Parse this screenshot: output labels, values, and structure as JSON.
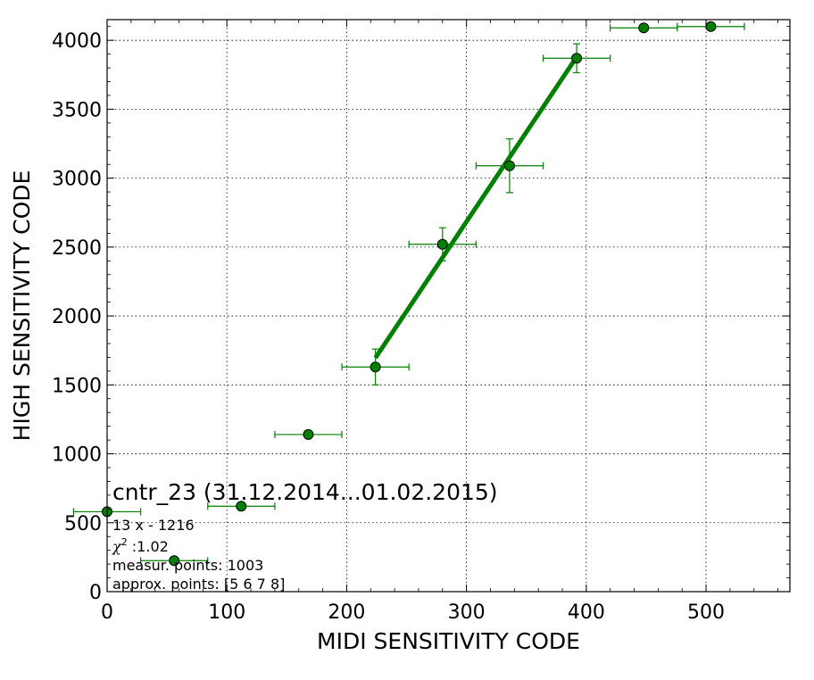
{
  "chart_data": {
    "type": "scatter",
    "title": "",
    "xlabel": "MIDI SENSITIVITY CODE",
    "ylabel": "HIGH SENSITIVITY CODE",
    "xlim": [
      0,
      570
    ],
    "ylim": [
      0,
      4150
    ],
    "x_ticks": [
      0,
      100,
      200,
      300,
      400,
      500
    ],
    "y_ticks": [
      0,
      500,
      1000,
      1500,
      2000,
      2500,
      3000,
      3500,
      4000
    ],
    "grid": true,
    "points": [
      {
        "x": 0,
        "y": 580,
        "xerr": 28,
        "yerr": 0
      },
      {
        "x": 56,
        "y": 225,
        "xerr": 28,
        "yerr": 0
      },
      {
        "x": 112,
        "y": 620,
        "xerr": 28,
        "yerr": 0
      },
      {
        "x": 168,
        "y": 1140,
        "xerr": 28,
        "yerr": 20
      },
      {
        "x": 224,
        "y": 1630,
        "xerr": 28,
        "yerr": 130
      },
      {
        "x": 280,
        "y": 2520,
        "xerr": 28,
        "yerr": 120
      },
      {
        "x": 336,
        "y": 3090,
        "xerr": 28,
        "yerr": 195
      },
      {
        "x": 392,
        "y": 3870,
        "xerr": 28,
        "yerr": 105
      },
      {
        "x": 448,
        "y": 4090,
        "xerr": 28,
        "yerr": 0
      },
      {
        "x": 504,
        "y": 4100,
        "xerr": 28,
        "yerr": 0
      }
    ],
    "fit_line": {
      "x": [
        224,
        392
      ],
      "y": [
        1696,
        3880
      ]
    },
    "colors": {
      "marker": "#008000",
      "edge": "#000000",
      "fit": "#008000",
      "errorbar": "#008000"
    },
    "annotations": {
      "header": "cntr_23 (31.12.2014...01.02.2015)",
      "formula": "13 x - 1216",
      "chi_symbol": "χ",
      "chi_power": "2",
      "chi_value": " :1.02",
      "measur_points": "measur. points: 1003",
      "approx_points": "approx. points: [5 6 7 8]"
    }
  }
}
